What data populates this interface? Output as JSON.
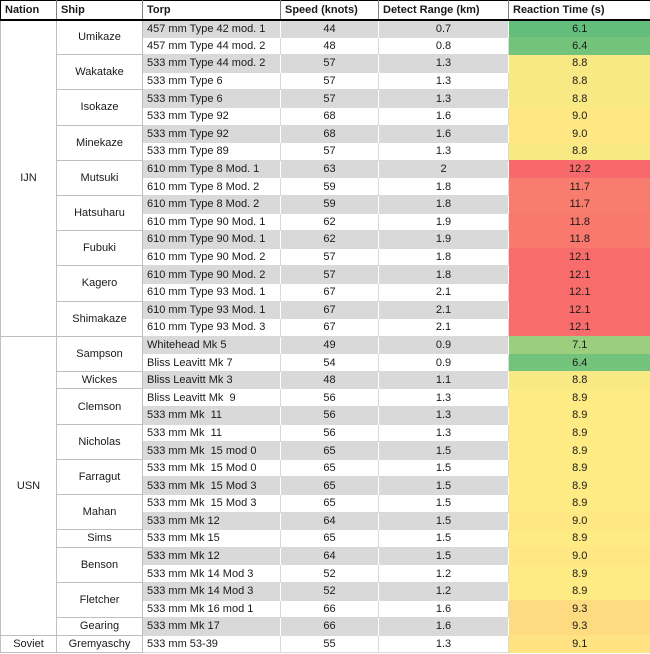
{
  "columns": [
    {
      "label": "Nation"
    },
    {
      "label": "Ship"
    },
    {
      "label": "Torp"
    },
    {
      "label": "Speed (knots)"
    },
    {
      "label": "Detect Range (km)"
    },
    {
      "label": "Reaction Time (s)"
    }
  ],
  "reaction_color_scale": {
    "min_green": "#63BE7B",
    "mid_yellow": "#FFEB84",
    "max_red": "#F8696B"
  },
  "nations": [
    {
      "name": "IJN",
      "ships": [
        {
          "name": "Umikaze",
          "torps": [
            {
              "torp": "457 mm Type 42 mod. 1",
              "speed": "44",
              "detect": "0.7",
              "reaction": "6.1",
              "color": "#63BE7B"
            },
            {
              "torp": "457 mm Type 44 mod. 2",
              "speed": "48",
              "detect": "0.8",
              "reaction": "6.4",
              "color": "#74C37C"
            }
          ]
        },
        {
          "name": "Wakatake",
          "torps": [
            {
              "torp": "533 mm Type 44 mod. 2",
              "speed": "57",
              "detect": "1.3",
              "reaction": "8.8",
              "color": "#F9E984"
            },
            {
              "torp": "533 mm Type 6",
              "speed": "57",
              "detect": "1.3",
              "reaction": "8.8",
              "color": "#F9E984"
            }
          ]
        },
        {
          "name": "Isokaze",
          "torps": [
            {
              "torp": "533 mm Type 6",
              "speed": "57",
              "detect": "1.3",
              "reaction": "8.8",
              "color": "#F9E984"
            },
            {
              "torp": "533 mm Type 92",
              "speed": "68",
              "detect": "1.6",
              "reaction": "9.0",
              "color": "#FFE783"
            }
          ]
        },
        {
          "name": "Minekaze",
          "torps": [
            {
              "torp": "533 mm Type 92",
              "speed": "68",
              "detect": "1.6",
              "reaction": "9.0",
              "color": "#FFE783"
            },
            {
              "torp": "533 mm Type 89",
              "speed": "57",
              "detect": "1.3",
              "reaction": "8.8",
              "color": "#F9E984"
            }
          ]
        },
        {
          "name": "Mutsuki",
          "torps": [
            {
              "torp": "610 mm Type 8 Mod. 1",
              "speed": "63",
              "detect": "2",
              "reaction": "12.2",
              "color": "#F8696B"
            },
            {
              "torp": "610 mm Type 8 Mod. 2",
              "speed": "59",
              "detect": "1.8",
              "reaction": "11.7",
              "color": "#F97D6F"
            }
          ]
        },
        {
          "name": "Hatsuharu",
          "torps": [
            {
              "torp": "610 mm Type 8 Mod. 2",
              "speed": "59",
              "detect": "1.8",
              "reaction": "11.7",
              "color": "#F97D6F"
            },
            {
              "torp": "610 mm Type 90 Mod. 1",
              "speed": "62",
              "detect": "1.9",
              "reaction": "11.8",
              "color": "#F9796E"
            }
          ]
        },
        {
          "name": "Fubuki",
          "torps": [
            {
              "torp": "610 mm Type 90 Mod. 1",
              "speed": "62",
              "detect": "1.9",
              "reaction": "11.8",
              "color": "#F9796E"
            },
            {
              "torp": "610 mm Type 90 Mod. 2",
              "speed": "57",
              "detect": "1.8",
              "reaction": "12.1",
              "color": "#F86D6C"
            }
          ]
        },
        {
          "name": "Kagero",
          "torps": [
            {
              "torp": "610 mm Type 90 Mod. 2",
              "speed": "57",
              "detect": "1.8",
              "reaction": "12.1",
              "color": "#F86D6C"
            },
            {
              "torp": "610 mm Type 93 Mod. 1",
              "speed": "67",
              "detect": "2.1",
              "reaction": "12.1",
              "color": "#F86D6C"
            }
          ]
        },
        {
          "name": "Shimakaze",
          "torps": [
            {
              "torp": "610 mm Type 93 Mod. 1",
              "speed": "67",
              "detect": "2.1",
              "reaction": "12.1",
              "color": "#F86D6C"
            },
            {
              "torp": "610 mm Type 93 Mod. 3",
              "speed": "67",
              "detect": "2.1",
              "reaction": "12.1",
              "color": "#F86D6C"
            }
          ]
        }
      ]
    },
    {
      "name": "USN",
      "ships": [
        {
          "name": "Sampson",
          "torps": [
            {
              "torp": "Whitehead Mk 5",
              "speed": "49",
              "detect": "0.9",
              "reaction": "7.1",
              "color": "#9BCE7E"
            },
            {
              "torp": "Bliss Leavitt Mk 7",
              "speed": "54",
              "detect": "0.9",
              "reaction": "6.4",
              "color": "#74C37C"
            }
          ]
        },
        {
          "name": "Wickes",
          "torps": [
            {
              "torp": "Bliss Leavitt Mk 3",
              "speed": "48",
              "detect": "1.1",
              "reaction": "8.8",
              "color": "#F9E984"
            }
          ]
        },
        {
          "name": "Clemson",
          "torps": [
            {
              "torp": "Bliss Leavitt Mk  9",
              "speed": "56",
              "detect": "1.3",
              "reaction": "8.9",
              "color": "#FFEB84"
            },
            {
              "torp": "533 mm Mk  11",
              "speed": "56",
              "detect": "1.3",
              "reaction": "8.9",
              "color": "#FFEB84"
            }
          ]
        },
        {
          "name": "Nicholas",
          "torps": [
            {
              "torp": "533 mm Mk  11",
              "speed": "56",
              "detect": "1.3",
              "reaction": "8.9",
              "color": "#FFEB84"
            },
            {
              "torp": "533 mm Mk  15 mod 0",
              "speed": "65",
              "detect": "1.5",
              "reaction": "8.9",
              "color": "#FFEB84"
            }
          ]
        },
        {
          "name": "Farragut",
          "torps": [
            {
              "torp": "533 mm Mk  15 Mod 0",
              "speed": "65",
              "detect": "1.5",
              "reaction": "8.9",
              "color": "#FFEB84"
            },
            {
              "torp": "533 mm Mk  15 Mod 3",
              "speed": "65",
              "detect": "1.5",
              "reaction": "8.9",
              "color": "#FFEB84"
            }
          ]
        },
        {
          "name": "Mahan",
          "torps": [
            {
              "torp": "533 mm Mk  15 Mod 3",
              "speed": "65",
              "detect": "1.5",
              "reaction": "8.9",
              "color": "#FFEB84"
            },
            {
              "torp": "533 mm Mk 12",
              "speed": "64",
              "detect": "1.5",
              "reaction": "9.0",
              "color": "#FFE783"
            }
          ]
        },
        {
          "name": "Sims",
          "torps": [
            {
              "torp": "533 mm Mk 15",
              "speed": "65",
              "detect": "1.5",
              "reaction": "8.9",
              "color": "#FFEB84"
            }
          ]
        },
        {
          "name": "Benson",
          "torps": [
            {
              "torp": "533 mm Mk 12",
              "speed": "64",
              "detect": "1.5",
              "reaction": "9.0",
              "color": "#FFE783"
            },
            {
              "torp": "533 mm Mk 14 Mod 3",
              "speed": "52",
              "detect": "1.2",
              "reaction": "8.9",
              "color": "#FFEB84"
            }
          ]
        },
        {
          "name": "Fletcher",
          "torps": [
            {
              "torp": "533 mm Mk 14 Mod 3",
              "speed": "52",
              "detect": "1.2",
              "reaction": "8.9",
              "color": "#FFEB84"
            },
            {
              "torp": "533 mm Mk 16 mod 1",
              "speed": "66",
              "detect": "1.6",
              "reaction": "9.3",
              "color": "#FEDB81"
            }
          ]
        },
        {
          "name": "Gearing",
          "torps": [
            {
              "torp": "533 mm Mk 17",
              "speed": "66",
              "detect": "1.6",
              "reaction": "9.3",
              "color": "#FEDB81"
            }
          ]
        }
      ]
    },
    {
      "name": "Soviet",
      "ships": [
        {
          "name": "Gremyaschy",
          "torps": [
            {
              "torp": "533 mm 53-39",
              "speed": "55",
              "detect": "1.3",
              "reaction": "9.1",
              "color": "#FFE382"
            }
          ]
        }
      ]
    }
  ]
}
